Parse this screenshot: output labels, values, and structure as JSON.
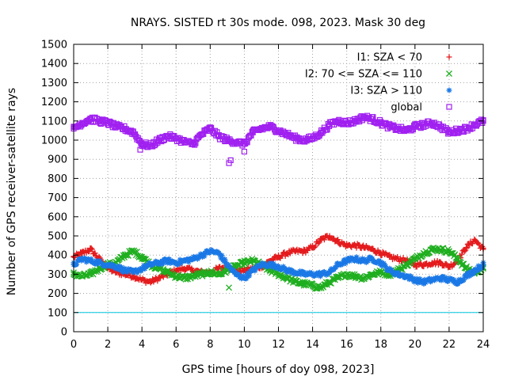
{
  "chart_data": {
    "type": "scatter",
    "title": "NRAYS. SISTED rt 30s mode. 098, 2023. Mask 30 deg",
    "xlabel": "GPS time [hours of doy 098, 2023]",
    "ylabel": "Number of GPS receiver-satellite rays",
    "xlim": [
      0,
      24
    ],
    "ylim": [
      0,
      1500
    ],
    "x_ticks": [
      "0",
      "2",
      "4",
      "6",
      "8",
      "10",
      "12",
      "14",
      "16",
      "18",
      "20",
      "22",
      "24"
    ],
    "y_ticks": [
      "0",
      "100",
      "200",
      "300",
      "400",
      "500",
      "600",
      "700",
      "800",
      "900",
      "1000",
      "1100",
      "1200",
      "1300",
      "1400",
      "1500"
    ],
    "grid": true,
    "legend_position": "top-right",
    "reference_line": {
      "y": 100,
      "color": "#00c8e0"
    },
    "series": [
      {
        "name": "I1: SZA < 70",
        "marker": "plus",
        "color": "#e41a1c",
        "x": [
          0,
          0.5,
          1,
          1.5,
          2,
          2.5,
          3,
          3.5,
          4,
          4.5,
          5,
          5.5,
          6,
          6.5,
          7,
          7.5,
          8,
          8.5,
          9,
          9.5,
          10,
          10.5,
          11,
          11.5,
          12,
          12.5,
          13,
          13.5,
          14,
          14.5,
          15,
          15.5,
          16,
          16.5,
          17,
          17.5,
          18,
          18.5,
          19,
          19.5,
          20,
          20.5,
          21,
          21.5,
          22,
          22.5,
          23,
          23.5,
          24
        ],
        "values": [
          390,
          410,
          430,
          380,
          330,
          310,
          300,
          290,
          270,
          260,
          280,
          300,
          320,
          330,
          320,
          310,
          310,
          330,
          340,
          320,
          320,
          330,
          340,
          370,
          390,
          410,
          420,
          420,
          440,
          480,
          500,
          470,
          450,
          450,
          440,
          430,
          410,
          390,
          380,
          370,
          350,
          350,
          360,
          360,
          340,
          370,
          440,
          480,
          430
        ]
      },
      {
        "name": "I2: 70 <= SZA <= 110",
        "marker": "cross",
        "color": "#1fae1f",
        "x": [
          0,
          0.5,
          1,
          1.5,
          2,
          2.5,
          3,
          3.5,
          4,
          4.5,
          5,
          5.5,
          6,
          6.5,
          7,
          7.5,
          8,
          8.5,
          9,
          9.5,
          10,
          10.5,
          11,
          11.5,
          12,
          12.5,
          13,
          13.5,
          14,
          14.5,
          15,
          15.5,
          16,
          16.5,
          17,
          17.5,
          18,
          18.5,
          19,
          19.5,
          20,
          20.5,
          21,
          21.5,
          22,
          22.5,
          23,
          23.5,
          24
        ],
        "values": [
          300,
          290,
          300,
          330,
          350,
          360,
          400,
          420,
          390,
          350,
          330,
          310,
          290,
          280,
          290,
          300,
          310,
          300,
          320,
          340,
          360,
          370,
          350,
          320,
          300,
          280,
          260,
          250,
          240,
          230,
          260,
          280,
          300,
          290,
          280,
          300,
          310,
          300,
          320,
          350,
          380,
          410,
          430,
          430,
          420,
          380,
          330,
          310,
          330
        ]
      },
      {
        "name": "I3: SZA > 110",
        "marker": "star",
        "color": "#1a78e6",
        "x": [
          0,
          0.5,
          1,
          1.5,
          2,
          2.5,
          3,
          3.5,
          4,
          4.5,
          5,
          5.5,
          6,
          6.5,
          7,
          7.5,
          8,
          8.5,
          9,
          9.5,
          10,
          10.5,
          11,
          11.5,
          12,
          12.5,
          13,
          13.5,
          14,
          14.5,
          15,
          15.5,
          16,
          16.5,
          17,
          17.5,
          18,
          18.5,
          19,
          19.5,
          20,
          20.5,
          21,
          21.5,
          22,
          22.5,
          23,
          23.5,
          24
        ],
        "values": [
          350,
          380,
          370,
          360,
          350,
          340,
          320,
          310,
          330,
          350,
          360,
          370,
          360,
          370,
          380,
          400,
          420,
          410,
          350,
          300,
          280,
          320,
          350,
          350,
          340,
          320,
          310,
          300,
          300,
          300,
          310,
          350,
          370,
          380,
          370,
          380,
          360,
          320,
          300,
          290,
          270,
          260,
          270,
          280,
          270,
          260,
          290,
          320,
          350
        ]
      },
      {
        "name": "global",
        "marker": "square",
        "color": "#a020f0",
        "x": [
          0,
          0.5,
          1,
          1.5,
          2,
          2.5,
          3,
          3.5,
          4,
          4.5,
          5,
          5.5,
          6,
          6.5,
          7,
          7.5,
          8,
          8.5,
          9,
          9.5,
          10,
          10.5,
          11,
          11.5,
          12,
          12.5,
          13,
          13.5,
          14,
          14.5,
          15,
          15.5,
          16,
          16.5,
          17,
          17.5,
          18,
          18.5,
          19,
          19.5,
          20,
          20.5,
          21,
          21.5,
          22,
          22.5,
          23,
          23.5,
          24
        ],
        "values": [
          1060,
          1090,
          1110,
          1100,
          1090,
          1070,
          1060,
          1040,
          980,
          970,
          1000,
          1020,
          1010,
          990,
          980,
          1030,
          1060,
          1020,
          1000,
          990,
          980,
          1040,
          1060,
          1070,
          1050,
          1030,
          1010,
          1000,
          1010,
          1040,
          1080,
          1100,
          1090,
          1100,
          1120,
          1110,
          1090,
          1070,
          1060,
          1050,
          1070,
          1080,
          1090,
          1070,
          1040,
          1050,
          1060,
          1080,
          1100
        ]
      }
    ],
    "outliers": [
      {
        "series": "global",
        "x": [
          9.1,
          9.2,
          10,
          3.9
        ],
        "values": [
          880,
          895,
          940,
          950
        ]
      },
      {
        "series": "I2: 70 <= SZA <= 110",
        "x": [
          9.1
        ],
        "values": [
          230
        ]
      }
    ]
  }
}
